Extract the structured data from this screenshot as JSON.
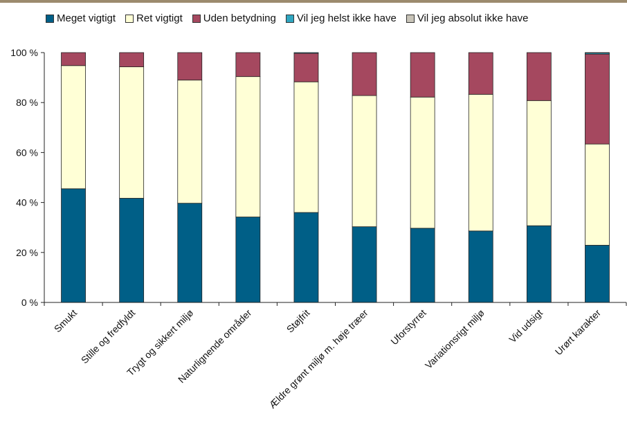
{
  "chart_data": {
    "type": "bar",
    "stacked": true,
    "categories": [
      "Smukt",
      "Stille og fredfyldt",
      "Trygt og sikkert miljø",
      "Naturlignende områder",
      "Støjfrit",
      "Ældre grønt miljø m. høje træer",
      "Uforstyrret",
      "Variationsrigt miljø",
      "Vid udsigt",
      "Urørt karakter"
    ],
    "series": [
      {
        "name": "Meget vigtigt",
        "color": "#005f87",
        "values": [
          45.5,
          41.7,
          39.7,
          34.2,
          36.0,
          30.3,
          29.7,
          28.6,
          30.7,
          22.9
        ]
      },
      {
        "name": "Ret vigtigt",
        "color": "#ffffd6",
        "values": [
          49.3,
          52.6,
          49.3,
          56.2,
          52.3,
          52.5,
          52.5,
          54.7,
          50.1,
          40.5
        ]
      },
      {
        "name": "Uden betydning",
        "color": "#a5485f",
        "values": [
          5.2,
          5.7,
          11.0,
          9.6,
          11.4,
          17.2,
          17.8,
          16.7,
          19.2,
          36.0
        ]
      },
      {
        "name": "Vil jeg helst ikke have",
        "color": "#2fa6c1",
        "values": [
          0,
          0,
          0,
          0,
          0.3,
          0,
          0,
          0,
          0,
          0.5
        ]
      },
      {
        "name": "Vil jeg absolut ikke have",
        "color": "#c8c4b8",
        "values": [
          0,
          0,
          0,
          0,
          0,
          0,
          0,
          0,
          0,
          0.1
        ]
      }
    ],
    "ylim": [
      0,
      100
    ],
    "yticks": [
      0,
      20,
      40,
      60,
      80,
      100
    ],
    "ytick_labels": [
      "0 %",
      "20 %",
      "40 %",
      "60 %",
      "80 %",
      "100 %"
    ],
    "title": "",
    "xlabel": "",
    "ylabel": "",
    "grid": false,
    "legend_position": "top"
  }
}
